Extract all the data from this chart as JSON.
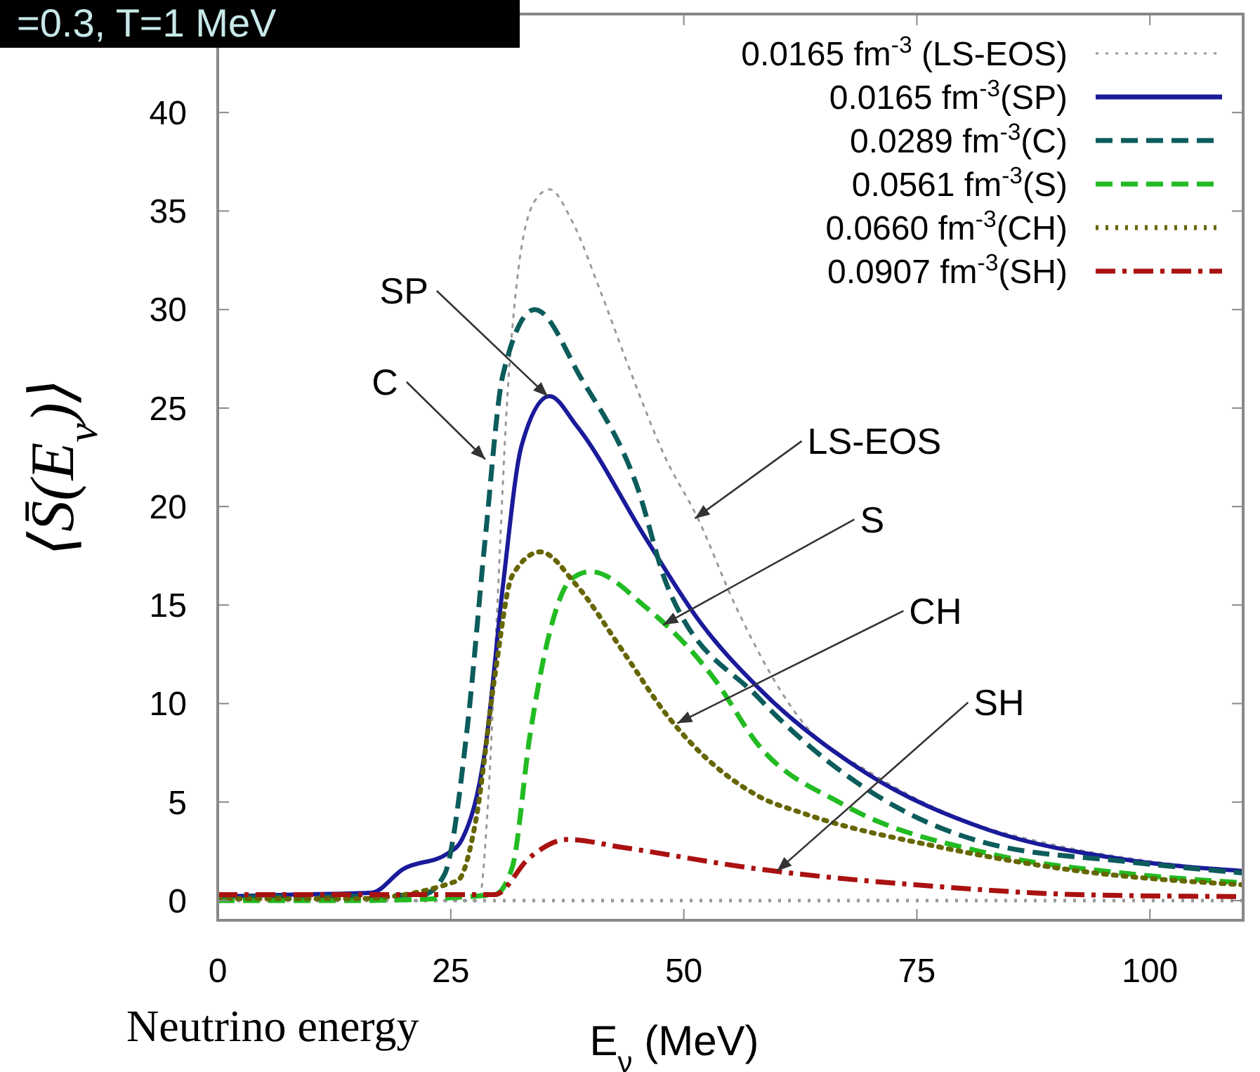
{
  "chart_data": {
    "type": "line",
    "title": "=0.3, T=1 MeV",
    "xlabel": "E$_{ν}$ (MeV)",
    "ylabel": "⟨S̄(E$_{ν}$)⟩",
    "xlim": [
      0,
      110
    ],
    "ylim": [
      -1,
      45
    ],
    "xticks": [
      0,
      25,
      50,
      75,
      100
    ],
    "yticks": [
      0,
      5,
      10,
      15,
      20,
      25,
      30,
      35,
      40
    ],
    "grid": false,
    "legend": "top right",
    "series": [
      {
        "name": "0.0165 fm$^{-3}$ (LS-EOS)",
        "color": "#999999",
        "line_style": "dotted",
        "x": [
          0,
          10,
          20,
          28,
          29,
          30,
          31,
          32,
          34,
          35.6,
          38,
          41,
          44,
          48,
          51.5,
          55.6,
          63,
          70,
          80,
          90,
          100,
          110
        ],
        "values": [
          0,
          0,
          0,
          0,
          5,
          15,
          25,
          31,
          35.5,
          36.1,
          34.5,
          31,
          27.2,
          22.5,
          19.4,
          14.9,
          8.9,
          6.5,
          4.1,
          2.8,
          2,
          1.5
        ]
      },
      {
        "name": "0.0165 fm$^{-3}$(SP)",
        "color": "#1a1a9a",
        "line_style": "solid",
        "x": [
          0,
          8,
          16.5,
          19.9,
          24.7,
          26.2,
          28.7,
          30.6,
          32.6,
          35.6,
          38.5,
          45.9,
          51.8,
          58,
          69.8,
          82.6,
          97,
          110
        ],
        "values": [
          0.2,
          0.3,
          0.4,
          1.6,
          2.4,
          3.1,
          7.7,
          16,
          23.1,
          25.6,
          24.1,
          18.4,
          14.1,
          10.8,
          6.4,
          3.6,
          2.1,
          1.5
        ]
      },
      {
        "name": "0.0289 fm$^{-3}$(C)",
        "color": "#0d5c5c",
        "line_style": "dashed",
        "x": [
          0,
          10,
          22,
          24.3,
          26.8,
          28.7,
          30.6,
          34,
          39,
          45,
          48.2,
          58,
          69.8,
          82.6,
          97,
          110
        ],
        "values": [
          0.2,
          0.2,
          0.3,
          1.3,
          8.9,
          18.4,
          26.7,
          30,
          26.5,
          21,
          16,
          10.3,
          5.6,
          2.9,
          2,
          1.4
        ]
      },
      {
        "name": "0.0561 fm$^{-3}$(S)",
        "color": "#22bb22",
        "line_style": "dashed",
        "x": [
          0,
          15,
          29.7,
          31.6,
          33.5,
          35.6,
          37.9,
          40,
          45.9,
          53.2,
          58,
          67,
          82.6,
          97,
          110
        ],
        "values": [
          0,
          0,
          0.3,
          1.7,
          8.4,
          13.6,
          16.3,
          16.7,
          14.9,
          11.3,
          7.9,
          4.9,
          2.4,
          1.4,
          0.9
        ]
      },
      {
        "name": "0.0660 fm$^{-3}$(CH)",
        "color": "#666600",
        "line_style": "dotted",
        "x": [
          0,
          15,
          25.7,
          27.7,
          29.7,
          31.6,
          34.6,
          38.5,
          43.4,
          48.2,
          58,
          63,
          77.6,
          92.4,
          110
        ],
        "values": [
          0.1,
          0.1,
          1,
          4.1,
          11.3,
          16.5,
          17.7,
          16,
          12.7,
          9.4,
          5.3,
          4.4,
          2.7,
          1.5,
          0.8
        ]
      },
      {
        "name": "0.0907 fm$^{-3}$(SH)",
        "color": "#aa1111",
        "line_style": "dashdot",
        "x": [
          0,
          15,
          29.7,
          33.5,
          37.5,
          43.4,
          58,
          77.6,
          92.4,
          110
        ],
        "values": [
          0.3,
          0.3,
          0.3,
          2.2,
          3.1,
          2.7,
          1.6,
          0.7,
          0.3,
          0.2
        ]
      }
    ],
    "ref_lines": [
      {
        "axis": "y",
        "value": 0,
        "color": "#999999",
        "line_style": "dotted"
      }
    ],
    "annotations": [
      {
        "text": "SP",
        "x": 35.4,
        "y": 25.6
      },
      {
        "text": "C",
        "x": 28.7,
        "y": 22.4
      },
      {
        "text": "LS-EOS",
        "x": 51.2,
        "y": 19.4
      },
      {
        "text": "S",
        "x": 47.8,
        "y": 14
      },
      {
        "text": "CH",
        "x": 49.3,
        "y": 9
      },
      {
        "text": "SH",
        "x": 60,
        "y": 1.5
      },
      "Neutrino energy"
    ]
  }
}
